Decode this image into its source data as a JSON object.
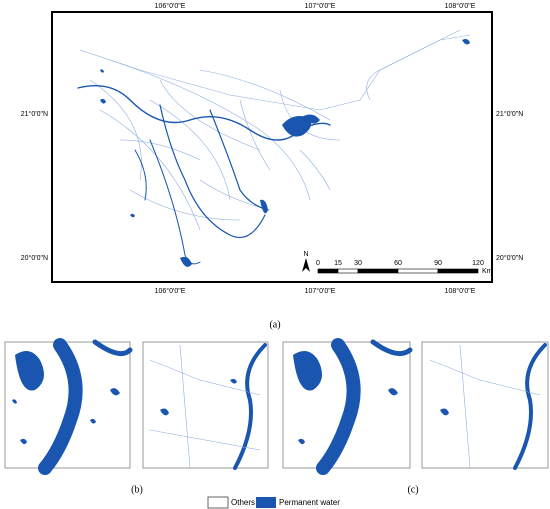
{
  "map": {
    "top_labels": [
      "106°0'0\"E",
      "107°0'0\"E",
      "108°0'0\"E"
    ],
    "bottom_labels": [
      "106°0'0\"E",
      "107°0'0\"E",
      "108°0'0\"E"
    ],
    "left_labels": [
      "21°0'0\"N",
      "20°0'0\"N"
    ],
    "right_labels": [
      "21°0'0\"N",
      "20°0'0\"N"
    ],
    "north": "N",
    "scale_labels": [
      0,
      15,
      30,
      60,
      90,
      120
    ],
    "scale_unit": "Km"
  },
  "captions": {
    "a": "(a)",
    "b": "(b)",
    "c": "(c)"
  },
  "legend": [
    "Others",
    "Permanent water"
  ]
}
